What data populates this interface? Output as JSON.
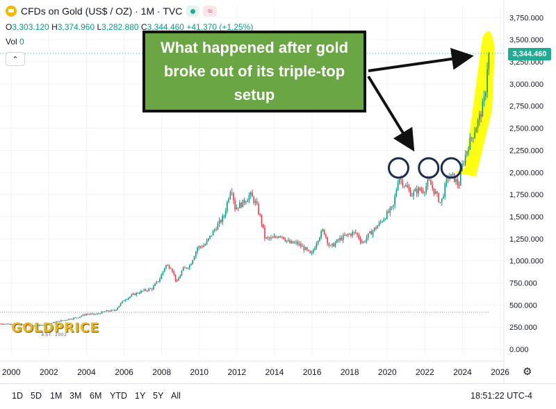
{
  "header": {
    "title": "CFDs on Gold (US$ / OZ) · 1M · TVC",
    "wave_glyph": "≈",
    "ohlc": {
      "o_label": "O",
      "o": "3,303.120",
      "h_label": "H",
      "h": "3,374.960",
      "l_label": "L",
      "l": "3,282.880",
      "c_label": "C",
      "c": "3,344.460",
      "change": "+41.370 (+1.25%)"
    },
    "vol_label": "Vol",
    "vol": "0",
    "collapse_glyph": "⌃"
  },
  "last_price": "3,344.460",
  "annotation": "What happened after gold broke out of its triple-top setup",
  "watermark": {
    "name": "GOLDPRICE",
    "sub": "EST. 2002"
  },
  "ranges": [
    "1D",
    "5D",
    "1M",
    "3M",
    "6M",
    "YTD",
    "1Y",
    "5Y",
    "All"
  ],
  "clock": "18:51:22 UTC-4",
  "settings_glyph": "⚙",
  "colors": {
    "up": "#089981",
    "down": "#f23645",
    "highlight": "#ffff00",
    "circle": "#1b2a4e",
    "callout": "#6aa744",
    "last_price": "#22ab94"
  },
  "chart_data": {
    "type": "candlestick",
    "interval": "1M",
    "x_ticks": [
      "2000",
      "2002",
      "2004",
      "2006",
      "2008",
      "2010",
      "2012",
      "2014",
      "2016",
      "2018",
      "2020",
      "2022",
      "2024",
      "2026"
    ],
    "y_ticks": [
      "0.000",
      "250.000",
      "500.000",
      "750.000",
      "1,000.000",
      "1,250.000",
      "1,500.000",
      "1,750.000",
      "2,000.000",
      "2,250.000",
      "2,500.000",
      "2,750.000",
      "3,000.000",
      "3,250.000",
      "3,500.000",
      "3,750.000"
    ],
    "ylim": [
      -70,
      3870
    ],
    "xlim": [
      1999.4,
      2026.2
    ],
    "price_series": [
      [
        1999.4,
        290
      ],
      [
        2000,
        285
      ],
      [
        2000.5,
        280
      ],
      [
        2001,
        265
      ],
      [
        2001.5,
        270
      ],
      [
        2002,
        290
      ],
      [
        2002.5,
        315
      ],
      [
        2003,
        340
      ],
      [
        2003.5,
        360
      ],
      [
        2004,
        400
      ],
      [
        2004.5,
        395
      ],
      [
        2005,
        430
      ],
      [
        2005.5,
        440
      ],
      [
        2006,
        560
      ],
      [
        2006.5,
        620
      ],
      [
        2007,
        660
      ],
      [
        2007.5,
        690
      ],
      [
        2007.9,
        800
      ],
      [
        2008.2,
        950
      ],
      [
        2008.5,
        930
      ],
      [
        2008.8,
        750
      ],
      [
        2009.1,
        900
      ],
      [
        2009.5,
        950
      ],
      [
        2009.9,
        1150
      ],
      [
        2010.3,
        1180
      ],
      [
        2010.8,
        1350
      ],
      [
        2011.3,
        1500
      ],
      [
        2011.7,
        1850
      ],
      [
        2011.9,
        1600
      ],
      [
        2012.3,
        1650
      ],
      [
        2012.7,
        1750
      ],
      [
        2013.0,
        1650
      ],
      [
        2013.3,
        1450
      ],
      [
        2013.5,
        1250
      ],
      [
        2013.9,
        1250
      ],
      [
        2014.3,
        1300
      ],
      [
        2014.8,
        1200
      ],
      [
        2015.2,
        1200
      ],
      [
        2015.7,
        1120
      ],
      [
        2015.95,
        1060
      ],
      [
        2016.3,
        1250
      ],
      [
        2016.6,
        1350
      ],
      [
        2016.95,
        1150
      ],
      [
        2017.5,
        1250
      ],
      [
        2017.95,
        1300
      ],
      [
        2018.3,
        1320
      ],
      [
        2018.7,
        1200
      ],
      [
        2018.95,
        1280
      ],
      [
        2019.5,
        1400
      ],
      [
        2019.95,
        1520
      ],
      [
        2020.3,
        1600
      ],
      [
        2020.6,
        1950
      ],
      [
        2020.95,
        1850
      ],
      [
        2021.3,
        1750
      ],
      [
        2021.6,
        1800
      ],
      [
        2021.95,
        1800
      ],
      [
        2022.2,
        1900
      ],
      [
        2022.6,
        1750
      ],
      [
        2022.85,
        1650
      ],
      [
        2023.2,
        1950
      ],
      [
        2023.5,
        1950
      ],
      [
        2023.8,
        1850
      ],
      [
        2023.95,
        2050
      ],
      [
        2024.3,
        2300
      ],
      [
        2024.6,
        2450
      ],
      [
        2024.95,
        2650
      ],
      [
        2025.2,
        2850
      ],
      [
        2025.35,
        3300
      ],
      [
        2025.45,
        3344.46
      ]
    ],
    "triple_top_markers": [
      {
        "x": 2020.6,
        "y": 2050
      },
      {
        "x": 2022.2,
        "y": 2050
      },
      {
        "x": 2023.4,
        "y": 2050
      }
    ],
    "highlight_period": {
      "x_start": 2023.9,
      "x_end": 2025.5
    },
    "reference_line_y": 420,
    "last_value": 3344.46
  }
}
